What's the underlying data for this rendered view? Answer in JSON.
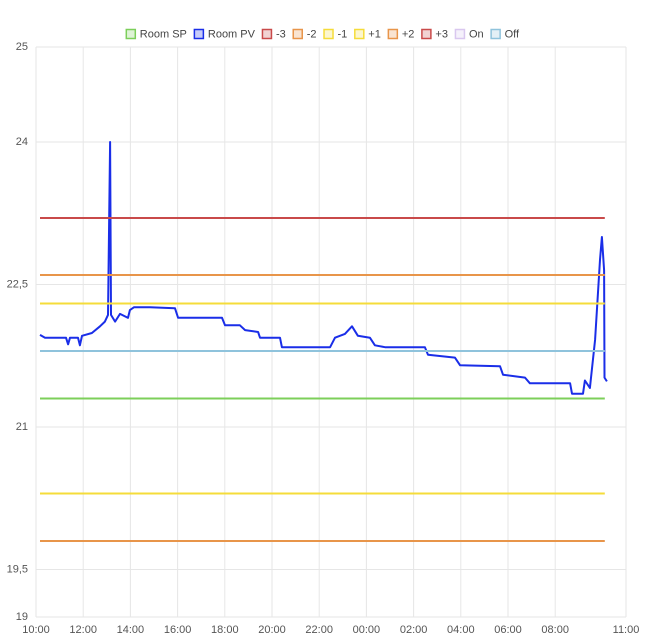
{
  "chart_data": {
    "type": "line",
    "xlim": [
      10,
      35
    ],
    "xticks": [
      {
        "value": 10,
        "label": "10:00"
      },
      {
        "value": 12,
        "label": "12:00"
      },
      {
        "value": 14,
        "label": "14:00"
      },
      {
        "value": 16,
        "label": "16:00"
      },
      {
        "value": 18,
        "label": "18:00"
      },
      {
        "value": 20,
        "label": "20:00"
      },
      {
        "value": 22,
        "label": "22:00"
      },
      {
        "value": 24,
        "label": "00:00"
      },
      {
        "value": 26,
        "label": "02:00"
      },
      {
        "value": 28,
        "label": "04:00"
      },
      {
        "value": 30,
        "label": "06:00"
      },
      {
        "value": 32,
        "label": "08:00"
      },
      {
        "value": 35,
        "label": "11:00"
      }
    ],
    "ylim": [
      19,
      25
    ],
    "yticks": [
      19,
      {
        "value": 19.5,
        "label": "19,5"
      },
      21,
      {
        "value": 22.5,
        "label": "22,5"
      },
      24,
      25
    ],
    "grid": true,
    "legend": "top",
    "series": [
      {
        "name": "Room SP",
        "color": "#7ccf5a",
        "x": [
          10.17,
          34.1
        ],
        "values": [
          21.3,
          21.3
        ]
      },
      {
        "name": "Room PV",
        "color": "#1a2ee8",
        "x": [
          10.17,
          10.38,
          11.27,
          11.36,
          11.44,
          11.78,
          11.86,
          11.95,
          12.37,
          12.71,
          12.92,
          13.05,
          13.14,
          13.18,
          13.35,
          13.56,
          13.9,
          13.98,
          14.15,
          14.83,
          15.89,
          16.02,
          17.88,
          18.01,
          18.64,
          18.86,
          19.41,
          19.49,
          20.34,
          20.42,
          22.46,
          22.67,
          23.09,
          23.39,
          23.64,
          24.15,
          24.36,
          24.79,
          26.48,
          26.61,
          27.75,
          27.97,
          29.66,
          29.79,
          30.72,
          30.93,
          32.63,
          32.71,
          33.18,
          33.26,
          33.47,
          33.69,
          33.9,
          33.98,
          34.07,
          34.09,
          34.19
        ],
        "values": [
          21.97,
          21.94,
          21.94,
          21.87,
          21.94,
          21.94,
          21.86,
          21.96,
          21.99,
          22.06,
          22.11,
          22.18,
          24.0,
          22.18,
          22.11,
          22.19,
          22.15,
          22.23,
          22.26,
          22.26,
          22.25,
          22.15,
          22.15,
          22.07,
          22.07,
          22.02,
          22.0,
          21.94,
          21.94,
          21.84,
          21.84,
          21.94,
          21.98,
          22.06,
          21.96,
          21.94,
          21.86,
          21.84,
          21.84,
          21.76,
          21.73,
          21.65,
          21.64,
          21.55,
          21.52,
          21.46,
          21.46,
          21.35,
          21.35,
          21.49,
          21.41,
          21.92,
          22.76,
          23.0,
          22.65,
          21.52,
          21.48
        ]
      },
      {
        "name": "-3",
        "color": "#c94a4a",
        "x": [
          10.17,
          34.1
        ],
        "values": [
          23.2,
          23.2
        ]
      },
      {
        "name": "-2",
        "color": "#e8954a",
        "x": [
          10.17,
          34.1
        ],
        "values": [
          22.6,
          22.6
        ]
      },
      {
        "name": "-1",
        "color": "#f5dc3a",
        "x": [
          10.17,
          34.1
        ],
        "values": [
          22.3,
          22.3
        ]
      },
      {
        "name": "+1",
        "color": "#f5dc3a",
        "x": [
          10.17,
          34.1
        ],
        "values": [
          20.3,
          20.3
        ]
      },
      {
        "name": "+2",
        "color": "#e8954a",
        "x": [
          10.17,
          34.1
        ],
        "values": [
          19.8,
          19.8
        ]
      },
      {
        "name": "+3",
        "color": "#c94a4a",
        "x": [],
        "values": []
      },
      {
        "name": "On",
        "color": "#d9c7ef",
        "x": [],
        "values": []
      },
      {
        "name": "Off",
        "color": "#8fc3dc",
        "x": [
          10.17,
          34.1
        ],
        "values": [
          21.8,
          21.8
        ]
      }
    ]
  }
}
